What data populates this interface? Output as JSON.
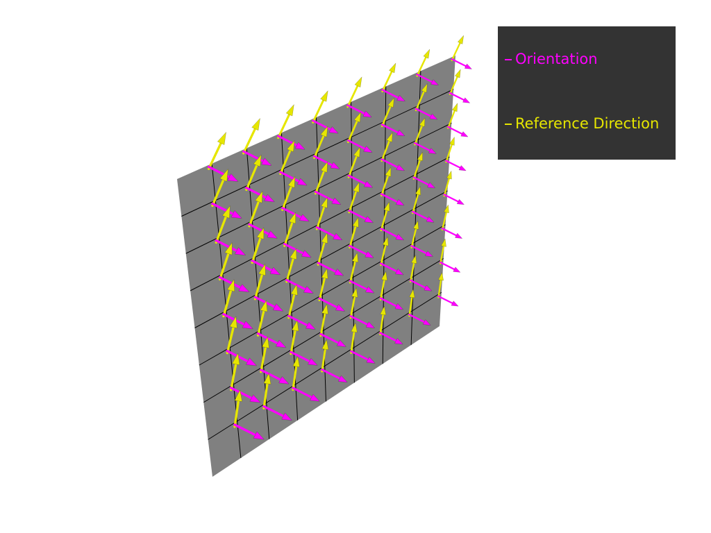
{
  "legend": {
    "entries": [
      {
        "label": "Orientation",
        "color": "#ff00ff"
      },
      {
        "label": "Reference Direction",
        "color": "#e6e600"
      }
    ]
  }
}
